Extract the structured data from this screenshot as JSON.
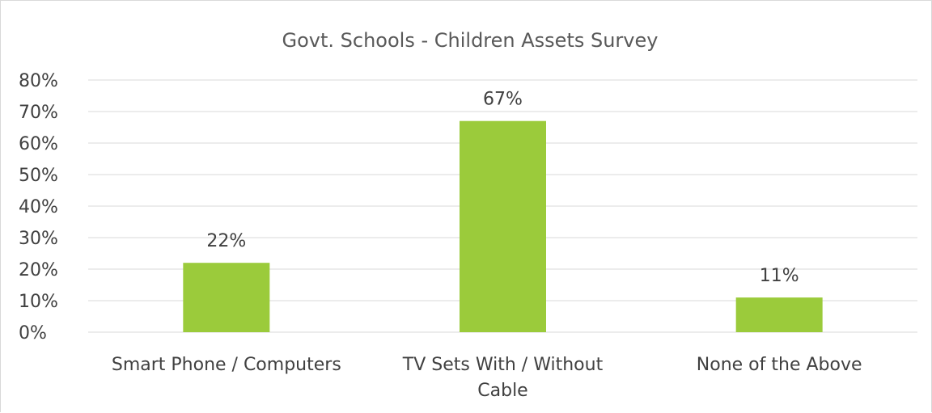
{
  "chart_data": {
    "type": "bar",
    "title": "Govt. Schools - Children Assets Survey",
    "categories": [
      "Smart Phone / Computers",
      "TV Sets With / Without Cable",
      "None of the Above"
    ],
    "category_lines": [
      [
        "Smart Phone / Computers"
      ],
      [
        "TV Sets With / Without",
        "Cable"
      ],
      [
        "None of the Above"
      ]
    ],
    "values": [
      22,
      67,
      11
    ],
    "data_labels": [
      "22%",
      "67%",
      "11%"
    ],
    "ylim": [
      0,
      80
    ],
    "yticks": [
      0,
      10,
      20,
      30,
      40,
      50,
      60,
      70,
      80
    ],
    "ytick_labels": [
      "0%",
      "10%",
      "20%",
      "30%",
      "40%",
      "50%",
      "60%",
      "70%",
      "80%"
    ],
    "xlabel": "",
    "ylabel": "",
    "grid": true,
    "legend": "none",
    "colors": {
      "bar": "#9bcb3b",
      "grid": "#d9d9d9",
      "text": "#404040",
      "title": "#595959"
    }
  }
}
